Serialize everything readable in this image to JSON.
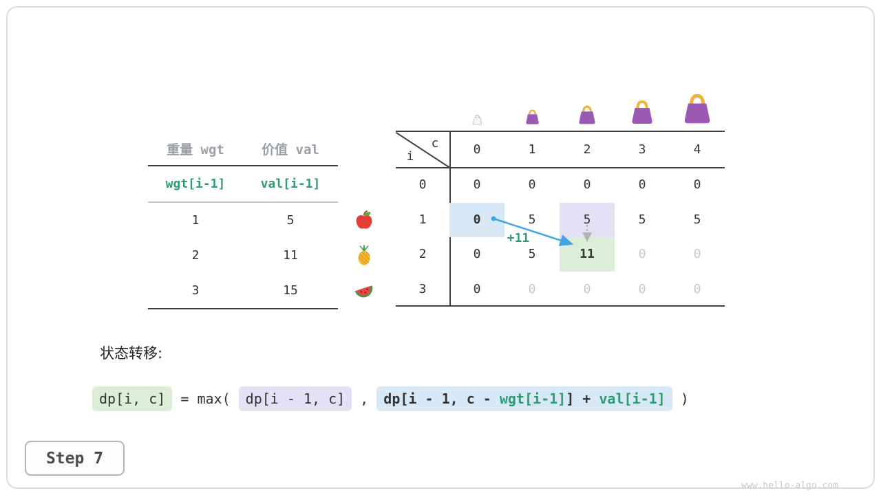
{
  "colors": {
    "accent_green": "#2e9b72",
    "arrow_blue": "#45a3e2",
    "arrow_gray": "#b3b3b3",
    "hl_blue": "#d7e9f7",
    "hl_purple": "#e2e1f5",
    "hl_green": "#dcedd8",
    "dim_text": "#c8c8c8",
    "bag_purple": "#9b59b6",
    "bag_handle": "#f0b13f"
  },
  "items_table": {
    "col_headers": [
      "重量 wgt",
      "价值 val"
    ],
    "formula_row": [
      "wgt[i-1]",
      "val[i-1]"
    ],
    "rows": [
      {
        "fruit": "apple-icon",
        "wgt": "1",
        "val": "5"
      },
      {
        "fruit": "pineapple-icon",
        "wgt": "2",
        "val": "11"
      },
      {
        "fruit": "watermelon-icon",
        "wgt": "3",
        "val": "15"
      }
    ]
  },
  "dp_table": {
    "corner": {
      "top_label": "c",
      "side_label": "i"
    },
    "col_headers": [
      "0",
      "1",
      "2",
      "3",
      "4"
    ],
    "row_headers": [
      "0",
      "1",
      "2",
      "3"
    ],
    "cells": [
      [
        {
          "v": "0"
        },
        {
          "v": "0"
        },
        {
          "v": "0"
        },
        {
          "v": "0"
        },
        {
          "v": "0"
        }
      ],
      [
        {
          "v": "0",
          "hl": "blue",
          "bold": true
        },
        {
          "v": "5"
        },
        {
          "v": "5",
          "hl": "purple"
        },
        {
          "v": "5"
        },
        {
          "v": "5"
        }
      ],
      [
        {
          "v": "0"
        },
        {
          "v": "5"
        },
        {
          "v": "11",
          "hl": "green",
          "bold": true
        },
        {
          "v": "0",
          "dim": true
        },
        {
          "v": "0",
          "dim": true
        }
      ],
      [
        {
          "v": "0"
        },
        {
          "v": "0",
          "dim": true
        },
        {
          "v": "0",
          "dim": true
        },
        {
          "v": "0",
          "dim": true
        },
        {
          "v": "0",
          "dim": true
        }
      ]
    ],
    "annotations": {
      "edge_label": "+11"
    },
    "bags": [
      "bag-icon-capacity-0",
      "bag-icon-capacity-1",
      "bag-icon-capacity-2",
      "bag-icon-capacity-3",
      "bag-icon-capacity-4"
    ]
  },
  "transition": {
    "title": "状态转移:",
    "formula": [
      {
        "text": "dp[i, c]",
        "box": "green"
      },
      {
        "text": " = max( "
      },
      {
        "text": "dp[i - 1, c]",
        "box": "purple"
      },
      {
        "text": " , "
      },
      {
        "box": "blue",
        "bold": true,
        "segments": [
          {
            "text": "dp[i - 1, c - "
          },
          {
            "text": "wgt[i-1]",
            "green": true
          },
          {
            "text": "] + "
          },
          {
            "text": "val[i-1]",
            "green": true
          }
        ]
      },
      {
        "text": " )"
      }
    ]
  },
  "footer": {
    "step_label": "Step 7",
    "watermark": "www.hello-algo.com"
  }
}
